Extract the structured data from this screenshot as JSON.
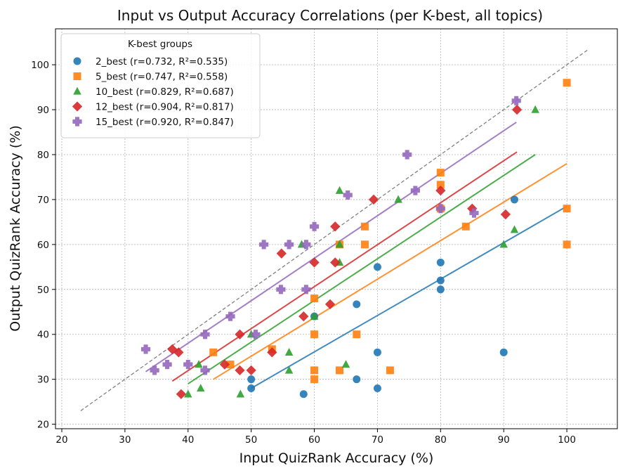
{
  "chart_data": {
    "type": "scatter",
    "title": "Input  vs Output Accuracy Correlations (per K-best, all topics)",
    "xlabel": "Input QuizRank Accuracy (%)",
    "ylabel": "Output QuizRank Accuracy (%)",
    "xlim": [
      19,
      108
    ],
    "ylim": [
      19,
      108
    ],
    "xticks": [
      20,
      30,
      40,
      50,
      60,
      70,
      80,
      90,
      100
    ],
    "yticks": [
      20,
      30,
      40,
      50,
      60,
      70,
      80,
      90,
      100
    ],
    "grid": true,
    "legend_title": "K-best groups",
    "legend_position": "top-left",
    "identity_line": {
      "from": 23,
      "to": 103.5,
      "color": "#808080"
    },
    "series": [
      {
        "name": "2_best (r=0.732, R²=0.535)",
        "marker": "circle",
        "color": "#1f77b4",
        "points": [
          [
            50,
            30
          ],
          [
            50,
            28
          ],
          [
            58.3,
            26.7
          ],
          [
            60,
            44
          ],
          [
            66.7,
            46.7
          ],
          [
            66.7,
            30
          ],
          [
            70,
            55
          ],
          [
            70,
            36
          ],
          [
            70,
            28
          ],
          [
            80,
            56
          ],
          [
            80,
            52
          ],
          [
            80,
            50
          ],
          [
            90,
            36
          ],
          [
            91.7,
            70
          ]
        ],
        "fit": [
          [
            50,
            28
          ],
          [
            100,
            68.5
          ]
        ]
      },
      {
        "name": "5_best (r=0.747, R²=0.558)",
        "marker": "square",
        "color": "#ff7f0e",
        "points": [
          [
            44,
            36
          ],
          [
            46.7,
            33.3
          ],
          [
            53.3,
            36.7
          ],
          [
            60,
            48
          ],
          [
            60,
            40
          ],
          [
            60,
            32
          ],
          [
            60,
            30
          ],
          [
            64,
            60
          ],
          [
            64,
            32
          ],
          [
            66.7,
            40
          ],
          [
            68,
            64
          ],
          [
            68,
            60
          ],
          [
            72,
            32
          ],
          [
            80,
            76
          ],
          [
            80,
            73.3
          ],
          [
            80,
            68
          ],
          [
            84,
            64
          ],
          [
            100,
            96
          ],
          [
            100,
            68
          ],
          [
            100,
            60
          ]
        ],
        "fit": [
          [
            44,
            30
          ],
          [
            100,
            78
          ]
        ]
      },
      {
        "name": "10_best (r=0.829, R²=0.687)",
        "marker": "triangle",
        "color": "#2ca02c",
        "points": [
          [
            40,
            26.7
          ],
          [
            41.7,
            33.3
          ],
          [
            42,
            28
          ],
          [
            48.3,
            26.7
          ],
          [
            50,
            40
          ],
          [
            56,
            36
          ],
          [
            56,
            32
          ],
          [
            58,
            60
          ],
          [
            60,
            44
          ],
          [
            64,
            72
          ],
          [
            64,
            60
          ],
          [
            64,
            56
          ],
          [
            65,
            33.3
          ],
          [
            73.3,
            70
          ],
          [
            90,
            60
          ],
          [
            91.7,
            63.3
          ],
          [
            95,
            90
          ]
        ],
        "fit": [
          [
            40,
            29
          ],
          [
            95,
            80
          ]
        ]
      },
      {
        "name": "12_best (r=0.904, R²=0.817)",
        "marker": "diamond",
        "color": "#d62728",
        "points": [
          [
            37.5,
            36.7
          ],
          [
            38.5,
            36
          ],
          [
            38.9,
            26.7
          ],
          [
            45.8,
            33.3
          ],
          [
            48.2,
            40
          ],
          [
            48.2,
            32
          ],
          [
            50,
            32
          ],
          [
            53.3,
            36
          ],
          [
            54.8,
            58
          ],
          [
            58.3,
            44
          ],
          [
            60,
            56
          ],
          [
            62.5,
            46.7
          ],
          [
            63.3,
            64
          ],
          [
            63.3,
            56
          ],
          [
            69.4,
            70
          ],
          [
            80,
            72
          ],
          [
            85,
            68
          ],
          [
            90.3,
            66.7
          ],
          [
            92.1,
            90
          ]
        ],
        "fit": [
          [
            37.5,
            29.6
          ],
          [
            92.1,
            80.6
          ]
        ]
      },
      {
        "name": "15_best (r=0.920, R²=0.847)",
        "marker": "plus",
        "color": "#9467bd",
        "points": [
          [
            33.3,
            36.7
          ],
          [
            34.7,
            32
          ],
          [
            36.7,
            33.3
          ],
          [
            40,
            33.3
          ],
          [
            42.7,
            40
          ],
          [
            42.7,
            32
          ],
          [
            46.7,
            44
          ],
          [
            50.7,
            40
          ],
          [
            52,
            60
          ],
          [
            54.7,
            50
          ],
          [
            56,
            60
          ],
          [
            58.7,
            60
          ],
          [
            58.7,
            50
          ],
          [
            60,
            64
          ],
          [
            65.3,
            71
          ],
          [
            74.7,
            80
          ],
          [
            76,
            72
          ],
          [
            80,
            68
          ],
          [
            85.3,
            67
          ],
          [
            92,
            92
          ]
        ],
        "fit": [
          [
            33.3,
            31.7
          ],
          [
            92,
            87.2
          ]
        ]
      }
    ]
  }
}
